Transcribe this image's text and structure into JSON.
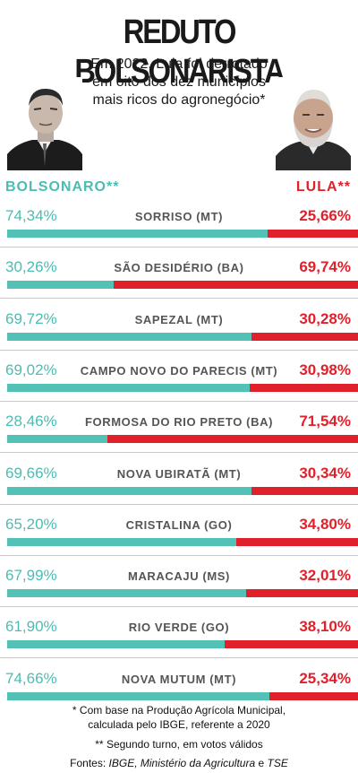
{
  "title": "REDUTO BOLSONARISTA",
  "subtitle": "Em 2022, Lula foi derrotado em oito dos dez municípios mais ricos do agronegócio*",
  "legend": {
    "left": "BOLSONARO**",
    "right": "LULA**"
  },
  "colors": {
    "bolsonaro": "#54c1b7",
    "lula": "#e0202a"
  },
  "chart_data": {
    "type": "bar",
    "stacked": true,
    "orientation": "horizontal",
    "categories": [
      "SORRISO (MT)",
      "SÃO DESIDÉRIO (BA)",
      "SAPEZAL (MT)",
      "CAMPO NOVO DO PARECIS (MT)",
      "FORMOSA DO RIO PRETO (BA)",
      "NOVA UBIRATÃ (MT)",
      "CRISTALINA (GO)",
      "MARACAJU (MS)",
      "RIO VERDE (GO)",
      "NOVA MUTUM (MT)"
    ],
    "series": [
      {
        "name": "BOLSONARO**",
        "values": [
          74.34,
          30.26,
          69.72,
          69.02,
          28.46,
          69.66,
          65.2,
          67.99,
          61.9,
          74.66
        ],
        "labels": [
          "74,34%",
          "30,26%",
          "69,72%",
          "69,02%",
          "28,46%",
          "69,66%",
          "65,20%",
          "67,99%",
          "61,90%",
          "74,66%"
        ]
      },
      {
        "name": "LULA**",
        "values": [
          25.66,
          69.74,
          30.28,
          30.98,
          71.54,
          30.34,
          34.8,
          32.01,
          38.1,
          25.34
        ],
        "labels": [
          "25,66%",
          "69,74%",
          "30,28%",
          "30,98%",
          "71,54%",
          "30,34%",
          "34,80%",
          "32,01%",
          "38,10%",
          "25,34%"
        ]
      }
    ],
    "xlim": [
      0,
      100
    ]
  },
  "footnotes": {
    "note1_line1": "* Com base na Produção Agrícola Municipal,",
    "note1_line2": "calculada pelo IBGE, referente a 2020",
    "note2": "** Segundo turno, em votos válidos",
    "sources_label": "Fontes: ",
    "sources_italic": "IBGE, Ministério da Agricultura",
    "sources_and": " e ",
    "sources_last": "TSE"
  }
}
